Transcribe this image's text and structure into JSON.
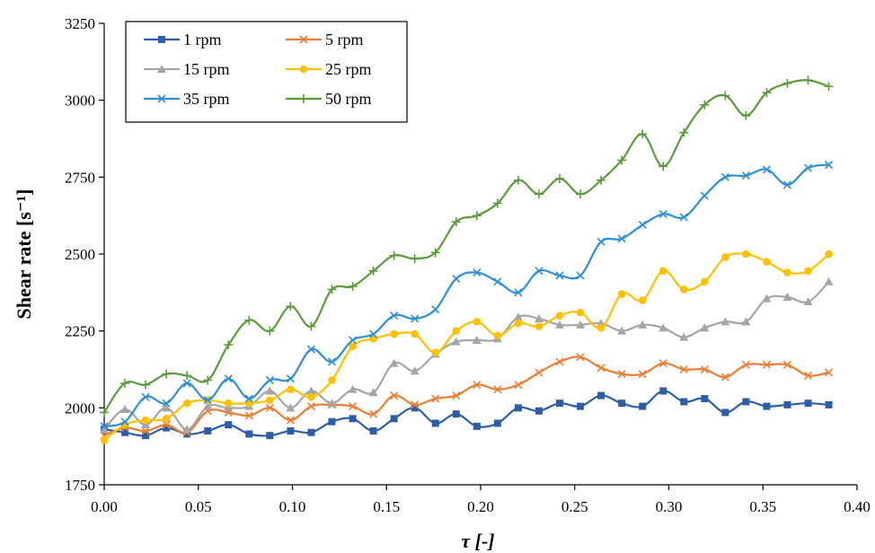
{
  "chart_data": {
    "type": "line",
    "title": "",
    "xlabel": "τ [-]",
    "ylabel": "Shear rate [s⁻¹]",
    "xlim": [
      0,
      0.4
    ],
    "ylim": [
      1750,
      3250
    ],
    "x_ticks": [
      "0.00",
      "0.05",
      "0.10",
      "0.15",
      "0.20",
      "0.25",
      "0.30",
      "0.35",
      "0.40"
    ],
    "y_ticks": [
      "1750",
      "2000",
      "2250",
      "2500",
      "2750",
      "3000",
      "3250"
    ],
    "legend_position": "top-left",
    "x": [
      0.0,
      0.011,
      0.022,
      0.033,
      0.044,
      0.055,
      0.066,
      0.077,
      0.088,
      0.099,
      0.11,
      0.121,
      0.132,
      0.143,
      0.154,
      0.165,
      0.176,
      0.187,
      0.198,
      0.209,
      0.22,
      0.231,
      0.242,
      0.253,
      0.264,
      0.275,
      0.286,
      0.297,
      0.308,
      0.319,
      0.33,
      0.341,
      0.352,
      0.363,
      0.374,
      0.385
    ],
    "series": [
      {
        "name": "1 rpm",
        "color": "#2e5da8",
        "marker": "square",
        "values": [
          1930,
          1920,
          1910,
          1935,
          1915,
          1925,
          1945,
          1915,
          1910,
          1925,
          1920,
          1955,
          1965,
          1925,
          1965,
          2000,
          1950,
          1980,
          1940,
          1950,
          2000,
          1990,
          2015,
          2005,
          2040,
          2015,
          2005,
          2055,
          2020,
          2030,
          1985,
          2020,
          2005,
          2010,
          2015,
          2010
        ]
      },
      {
        "name": "5 rpm",
        "color": "#ed7d31",
        "marker": "x",
        "values": [
          1910,
          1935,
          1925,
          1945,
          1920,
          1990,
          1985,
          1975,
          2000,
          1960,
          2005,
          2010,
          2005,
          1980,
          2040,
          2010,
          2030,
          2040,
          2075,
          2060,
          2075,
          2115,
          2150,
          2165,
          2130,
          2110,
          2110,
          2145,
          2125,
          2125,
          2100,
          2140,
          2140,
          2140,
          2105,
          2115
        ]
      },
      {
        "name": "15 rpm",
        "color": "#a5a5a5",
        "marker": "triangle",
        "values": [
          1930,
          1995,
          1945,
          2000,
          1930,
          2005,
          2000,
          2005,
          2055,
          2000,
          2055,
          2015,
          2060,
          2050,
          2145,
          2120,
          2175,
          2215,
          2220,
          2225,
          2295,
          2290,
          2270,
          2270,
          2275,
          2250,
          2270,
          2260,
          2230,
          2260,
          2280,
          2280,
          2355,
          2360,
          2345,
          2410
        ]
      },
      {
        "name": "25 rpm",
        "color": "#ffc000",
        "marker": "circle",
        "values": [
          1895,
          1945,
          1960,
          1965,
          2015,
          2025,
          2015,
          2015,
          2025,
          2060,
          2035,
          2090,
          2200,
          2225,
          2240,
          2240,
          2180,
          2250,
          2280,
          2235,
          2275,
          2265,
          2300,
          2310,
          2260,
          2370,
          2350,
          2445,
          2385,
          2410,
          2490,
          2500,
          2475,
          2440,
          2445,
          2500
        ]
      },
      {
        "name": "35 rpm",
        "color": "#2e8ed8",
        "marker": "x",
        "values": [
          1940,
          1955,
          2035,
          2015,
          2080,
          2025,
          2095,
          2030,
          2090,
          2095,
          2190,
          2150,
          2220,
          2240,
          2300,
          2290,
          2320,
          2420,
          2440,
          2410,
          2375,
          2445,
          2430,
          2430,
          2540,
          2550,
          2595,
          2630,
          2620,
          2690,
          2750,
          2755,
          2775,
          2725,
          2780,
          2790
        ]
      },
      {
        "name": "50 rpm",
        "color": "#5a9b3d",
        "marker": "plus",
        "values": [
          1985,
          2080,
          2075,
          2110,
          2105,
          2090,
          2205,
          2285,
          2250,
          2330,
          2265,
          2385,
          2395,
          2445,
          2495,
          2485,
          2505,
          2605,
          2625,
          2665,
          2740,
          2695,
          2745,
          2695,
          2740,
          2805,
          2890,
          2785,
          2895,
          2985,
          3015,
          2950,
          3025,
          3055,
          3065,
          3045
        ]
      }
    ]
  }
}
